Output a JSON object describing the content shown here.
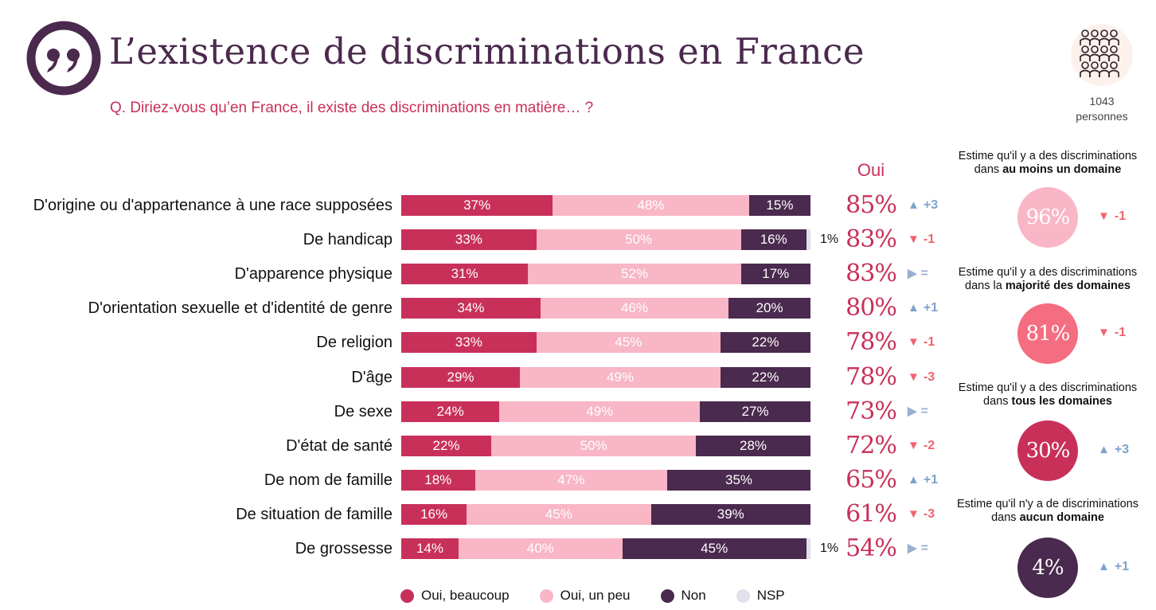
{
  "title": "L’existence de discriminations en France",
  "question": "Q. Diriez-vous qu’en France, il existe des discriminations en matière… ?",
  "sample": {
    "count": "1043",
    "unit": "personnes"
  },
  "colors": {
    "beaucoup": "#c8305a",
    "un_peu": "#f8b6c6",
    "non": "#4a2a4e",
    "nsp": "#e0e1ec",
    "accent": "#c8305a",
    "title": "#4b2a4d"
  },
  "oui_header": "Oui",
  "chart_data": {
    "type": "bar",
    "orientation": "horizontal",
    "stacked": true,
    "categories": [
      "D'origine ou d'appartenance à une race supposées",
      "De handicap",
      "D'apparence physique",
      "D'orientation sexuelle et d'identité de genre",
      "De religion",
      "D'âge",
      "De sexe",
      "D'état de santé",
      "De nom de famille",
      "De situation de famille",
      "De grossesse"
    ],
    "series": [
      {
        "name": "Oui, beaucoup",
        "values": [
          37,
          33,
          31,
          34,
          33,
          29,
          24,
          22,
          18,
          16,
          14
        ]
      },
      {
        "name": "Oui, un peu",
        "values": [
          48,
          50,
          52,
          46,
          45,
          49,
          49,
          50,
          47,
          45,
          40
        ]
      },
      {
        "name": "Non",
        "values": [
          15,
          16,
          17,
          20,
          22,
          22,
          27,
          28,
          35,
          39,
          45
        ]
      },
      {
        "name": "NSP",
        "values": [
          0,
          1,
          0,
          0,
          0,
          0,
          0,
          0,
          0,
          0,
          1
        ]
      }
    ],
    "segment_labels": [
      [
        "37%",
        "48%",
        "15%",
        ""
      ],
      [
        "33%",
        "50%",
        "16%",
        "1%"
      ],
      [
        "31%",
        "52%",
        "17%",
        ""
      ],
      [
        "34%",
        "46%",
        "20%",
        ""
      ],
      [
        "33%",
        "45%",
        "22%",
        ""
      ],
      [
        "29%",
        "49%",
        "22%",
        ""
      ],
      [
        "24%",
        "49%",
        "27%",
        ""
      ],
      [
        "22%",
        "50%",
        "28%",
        ""
      ],
      [
        "18%",
        "47%",
        "35%",
        ""
      ],
      [
        "16%",
        "45%",
        "39%",
        ""
      ],
      [
        "14%",
        "40%",
        "45%",
        "1%"
      ]
    ],
    "oui_totals": [
      "85%",
      "83%",
      "83%",
      "80%",
      "78%",
      "78%",
      "73%",
      "72%",
      "65%",
      "61%",
      "54%"
    ],
    "deltas": [
      {
        "dir": "up",
        "text": "+3"
      },
      {
        "dir": "down",
        "text": "-1"
      },
      {
        "dir": "eq",
        "text": "="
      },
      {
        "dir": "up",
        "text": "+1"
      },
      {
        "dir": "down",
        "text": "-1"
      },
      {
        "dir": "down",
        "text": "-3"
      },
      {
        "dir": "eq",
        "text": "="
      },
      {
        "dir": "down",
        "text": "-2"
      },
      {
        "dir": "up",
        "text": "+1"
      },
      {
        "dir": "down",
        "text": "-3"
      },
      {
        "dir": "eq",
        "text": "="
      }
    ],
    "xlim": [
      0,
      100
    ],
    "legend_position": "bottom"
  },
  "legend": [
    {
      "label": "Oui, beaucoup",
      "color": "#c8305a"
    },
    {
      "label": "Oui, un peu",
      "color": "#f8b6c6"
    },
    {
      "label": "Non",
      "color": "#4a2a4e"
    },
    {
      "label": "NSP",
      "color": "#e0e1ec"
    }
  ],
  "stats": [
    {
      "caption_line1": "Estime qu'il y a des discriminations",
      "caption_pre": "dans ",
      "caption_bold": "au moins un domaine",
      "value": "96%",
      "delta_dir": "down",
      "delta": "-1",
      "color": "#f8b6c6"
    },
    {
      "caption_line1": "Estime qu'il y a des discriminations",
      "caption_pre": "dans la ",
      "caption_bold": "majorité des domaines",
      "value": "81%",
      "delta_dir": "down",
      "delta": "-1",
      "color": "#f46d80"
    },
    {
      "caption_line1": "Estime qu'il y a des discriminations",
      "caption_pre": "dans ",
      "caption_bold": "tous les domaines",
      "value": "30%",
      "delta_dir": "up",
      "delta": "+3",
      "color": "#c8305a"
    },
    {
      "caption_line1": "Estime qu'il n'y a de discriminations",
      "caption_pre": "dans ",
      "caption_bold": "aucun domaine",
      "value": "4%",
      "delta_dir": "up",
      "delta": "+1",
      "color": "#4a2a4e"
    }
  ]
}
